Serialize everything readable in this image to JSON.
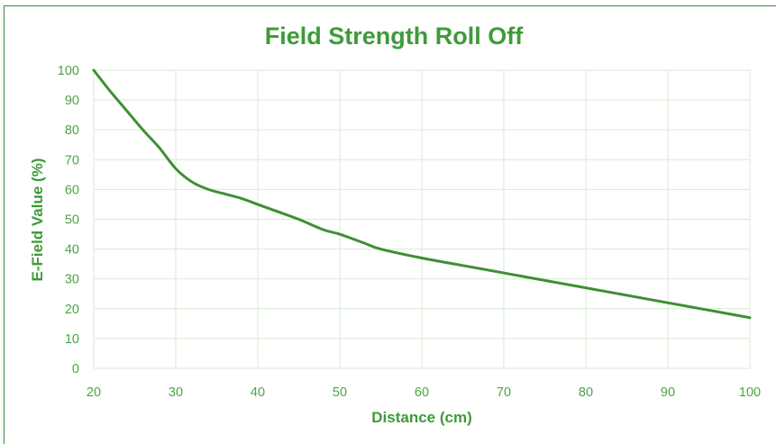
{
  "chart_data": {
    "type": "line",
    "title": "Field Strength Roll Off",
    "xlabel": "Distance (cm)",
    "ylabel": "E-Field Value (%)",
    "xlim": [
      20,
      100
    ],
    "ylim": [
      0,
      100
    ],
    "xticks": [
      20,
      30,
      40,
      50,
      60,
      70,
      80,
      90,
      100
    ],
    "yticks": [
      0,
      10,
      20,
      30,
      40,
      50,
      60,
      70,
      80,
      90,
      100
    ],
    "grid": true,
    "legend": "none",
    "series": [
      {
        "color": "#3f8f35",
        "points": [
          [
            20,
            100
          ],
          [
            22,
            93
          ],
          [
            24,
            86.5
          ],
          [
            26,
            80
          ],
          [
            28,
            74
          ],
          [
            30,
            67
          ],
          [
            32,
            62.5
          ],
          [
            34,
            60
          ],
          [
            36,
            58.5
          ],
          [
            38,
            57
          ],
          [
            40,
            55
          ],
          [
            42,
            53
          ],
          [
            45,
            50
          ],
          [
            48,
            46.5
          ],
          [
            50,
            45
          ],
          [
            53,
            42
          ],
          [
            55,
            40
          ],
          [
            60,
            37
          ],
          [
            65,
            34.5
          ],
          [
            70,
            32
          ],
          [
            75,
            29.5
          ],
          [
            80,
            27
          ],
          [
            85,
            24.5
          ],
          [
            90,
            22
          ],
          [
            95,
            19.5
          ],
          [
            100,
            17
          ]
        ]
      }
    ]
  }
}
